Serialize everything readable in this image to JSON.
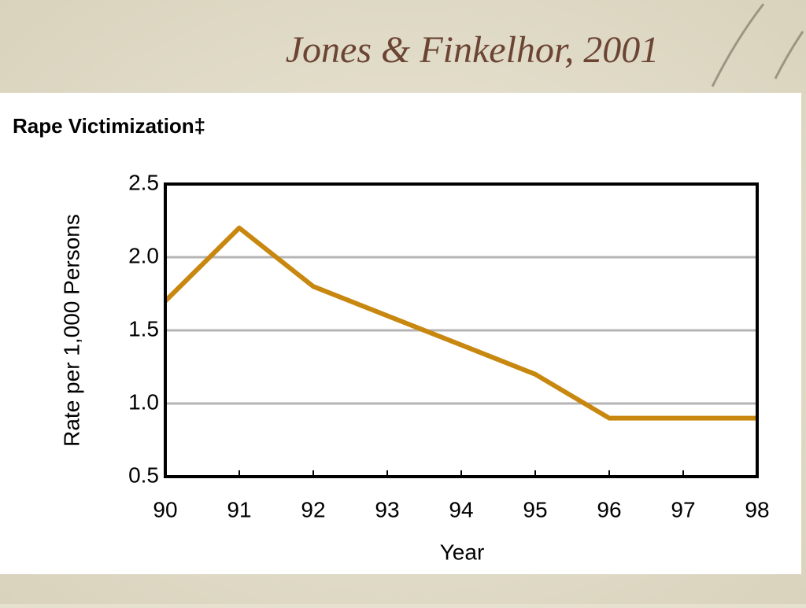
{
  "slide_title": "Jones & Finkelhor, 2001",
  "chart_data": {
    "type": "line",
    "title": "Rape Victimization‡",
    "x_label": "Year",
    "y_label": "Rate per 1,000 Persons",
    "x": [
      90,
      91,
      92,
      93,
      94,
      95,
      96,
      97,
      98
    ],
    "values": [
      1.7,
      2.2,
      1.8,
      1.6,
      1.4,
      1.2,
      0.9,
      0.9,
      0.9
    ],
    "color": "#c8870f",
    "xlim": [
      90,
      98
    ],
    "xticks": [
      90,
      91,
      92,
      93,
      94,
      95,
      96,
      97,
      98
    ],
    "ylim": [
      0.5,
      2.5
    ],
    "yticks": [
      0.5,
      {
        "value": 1,
        "label": "1.0"
      },
      1.5,
      {
        "value": 2,
        "label": "2.0"
      },
      2.5
    ],
    "grid": true
  }
}
